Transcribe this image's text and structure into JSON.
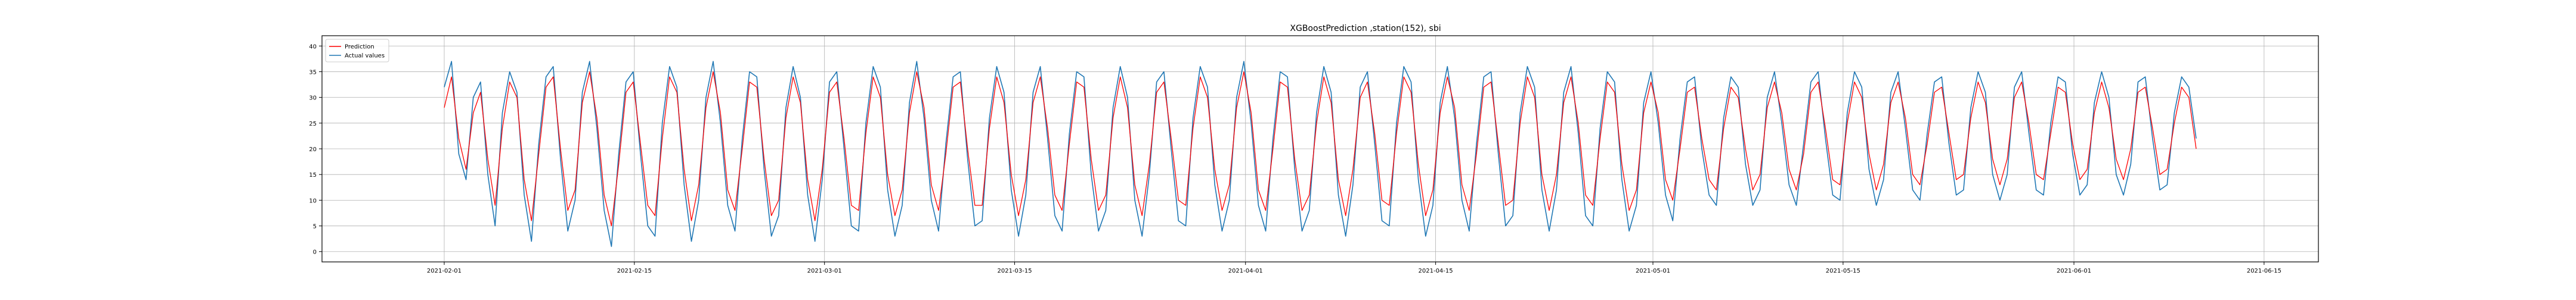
{
  "chart_data": {
    "type": "line",
    "title": "XGBoostPrediction ,station(152), sbi",
    "xlabel": "",
    "ylabel": "",
    "x_start": "2021-02-01",
    "x_end": "2021-06-10",
    "xlim": [
      "2021-01-23",
      "2021-06-19"
    ],
    "ylim": [
      -2,
      42
    ],
    "grid": true,
    "legend_position": "top-left",
    "x_tick_labels": [
      "2021-02-01",
      "2021-02-15",
      "2021-03-01",
      "2021-03-15",
      "2021-04-01",
      "2021-04-15",
      "2021-05-01",
      "2021-05-15",
      "2021-06-01",
      "2021-06-15"
    ],
    "y_ticks": [
      0,
      5,
      10,
      15,
      20,
      25,
      30,
      35,
      40
    ],
    "series": [
      {
        "name": "Prediction",
        "color": "#ff0000",
        "values": [
          28,
          34,
          22,
          16,
          27,
          31,
          18,
          9,
          24,
          33,
          30,
          14,
          6,
          19,
          32,
          34,
          20,
          8,
          12,
          29,
          35,
          26,
          11,
          5,
          17,
          31,
          33,
          21,
          9,
          7,
          22,
          34,
          31,
          16,
          6,
          13,
          28,
          35,
          27,
          12,
          8,
          20,
          33,
          32,
          18,
          7,
          10,
          26,
          34,
          29,
          14,
          6,
          16,
          31,
          33,
          22,
          9,
          8,
          23,
          34,
          30,
          15,
          7,
          12,
          27,
          35,
          28,
          13,
          8,
          19,
          32,
          33,
          20,
          9,
          9,
          24,
          34,
          29,
          15,
          7,
          14,
          29,
          34,
          24,
          11,
          8,
          21,
          33,
          32,
          18,
          8,
          11,
          26,
          34,
          28,
          13,
          7,
          17,
          31,
          33,
          22,
          10,
          9,
          24,
          34,
          30,
          16,
          8,
          13,
          28,
          35,
          27,
          12,
          8,
          20,
          33,
          32,
          18,
          8,
          11,
          25,
          34,
          29,
          14,
          7,
          16,
          30,
          33,
          23,
          10,
          9,
          23,
          34,
          31,
          17,
          7,
          12,
          27,
          34,
          28,
          13,
          8,
          19,
          32,
          33,
          21,
          9,
          10,
          25,
          34,
          30,
          15,
          8,
          15,
          29,
          34,
          25,
          11,
          9,
          22,
          33,
          31,
          17,
          8,
          12,
          27,
          33,
          27,
          14,
          10,
          20,
          31,
          32,
          22,
          14,
          12,
          24,
          32,
          30,
          20,
          12,
          15,
          28,
          33,
          27,
          16,
          12,
          19,
          31,
          33,
          24,
          14,
          13,
          25,
          33,
          30,
          19,
          12,
          17,
          29,
          33,
          26,
          15,
          13,
          21,
          31,
          32,
          23,
          14,
          15,
          26,
          33,
          29,
          18,
          13,
          18,
          30,
          33,
          25,
          15,
          14,
          23,
          32,
          31,
          21,
          14,
          16,
          27,
          33,
          28,
          18,
          14,
          20,
          31,
          32,
          24,
          15,
          16,
          25,
          32,
          30,
          20
        ]
      },
      {
        "name": "Actual values",
        "color": "#1f77b4",
        "values": [
          32,
          37,
          19,
          14,
          30,
          33,
          15,
          5,
          27,
          35,
          31,
          11,
          2,
          21,
          34,
          36,
          18,
          4,
          10,
          31,
          37,
          24,
          8,
          1,
          19,
          33,
          35,
          19,
          5,
          3,
          25,
          36,
          32,
          13,
          2,
          10,
          30,
          37,
          25,
          9,
          4,
          22,
          35,
          34,
          16,
          3,
          7,
          28,
          36,
          30,
          11,
          2,
          14,
          33,
          35,
          20,
          5,
          4,
          25,
          36,
          32,
          12,
          3,
          9,
          29,
          37,
          26,
          10,
          4,
          21,
          34,
          35,
          18,
          5,
          6,
          26,
          36,
          31,
          12,
          3,
          11,
          31,
          36,
          22,
          7,
          4,
          23,
          35,
          34,
          15,
          4,
          8,
          28,
          36,
          30,
          10,
          3,
          15,
          33,
          35,
          20,
          6,
          5,
          26,
          36,
          32,
          13,
          4,
          10,
          30,
          37,
          25,
          9,
          4,
          22,
          35,
          34,
          16,
          4,
          8,
          27,
          36,
          31,
          11,
          3,
          13,
          32,
          35,
          21,
          6,
          5,
          25,
          36,
          33,
          14,
          3,
          9,
          29,
          36,
          26,
          10,
          4,
          21,
          34,
          35,
          19,
          5,
          7,
          27,
          36,
          32,
          12,
          4,
          12,
          31,
          36,
          23,
          7,
          5,
          24,
          35,
          33,
          14,
          4,
          9,
          29,
          35,
          25,
          11,
          6,
          22,
          33,
          34,
          20,
          11,
          9,
          26,
          34,
          32,
          17,
          9,
          12,
          30,
          35,
          25,
          13,
          9,
          21,
          33,
          35,
          22,
          11,
          10,
          27,
          35,
          32,
          16,
          9,
          14,
          31,
          35,
          24,
          12,
          10,
          23,
          33,
          34,
          21,
          11,
          12,
          28,
          35,
          31,
          15,
          10,
          15,
          32,
          35,
          23,
          12,
          11,
          25,
          34,
          33,
          19,
          11,
          13,
          29,
          35,
          30,
          15,
          11,
          17,
          33,
          34,
          22,
          12,
          13,
          27,
          34,
          32,
          22
        ]
      }
    ]
  }
}
